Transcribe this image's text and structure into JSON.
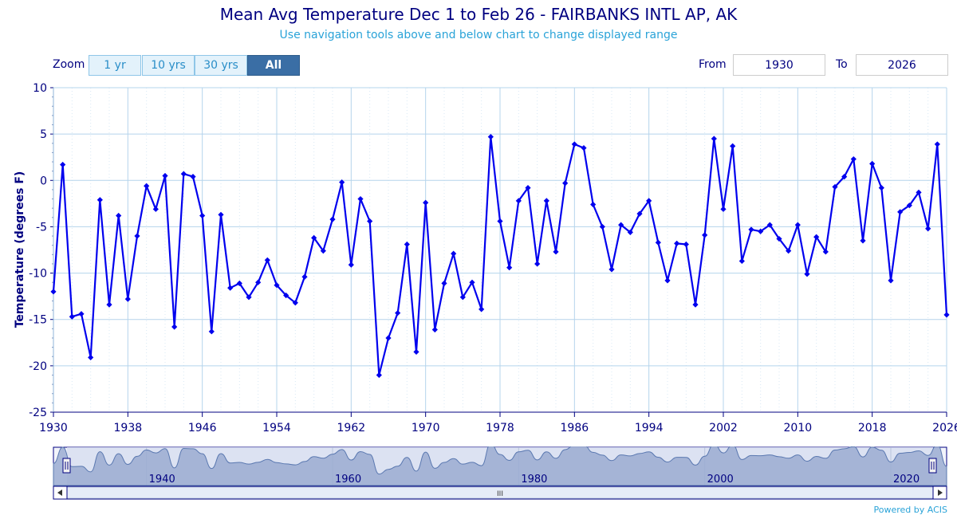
{
  "header": {
    "title": "Mean Avg Temperature Dec 1 to Feb 26 - FAIRBANKS INTL AP, AK",
    "subtitle": "Use navigation tools above and below chart to change displayed range"
  },
  "zoom": {
    "label": "Zoom",
    "buttons": [
      "1 yr",
      "10 yrs",
      "30 yrs",
      "All"
    ],
    "active": "All"
  },
  "range": {
    "from_label": "From",
    "from_value": "1930",
    "to_label": "To",
    "to_value": "2026"
  },
  "navigator": {
    "scroll_grip": "III",
    "handle_grip": "II"
  },
  "footer": {
    "credit": "Powered by ACIS"
  },
  "colors": {
    "title": "#000080",
    "subtitle": "#2aa3d8",
    "series": "#0000ee",
    "grid": "#b5d4ec",
    "axis": "#000080",
    "navigator_fill": "#9bacd1",
    "navigator_line": "#5a78b0"
  },
  "chart_data": {
    "type": "line",
    "title": "Mean Avg Temperature Dec 1 to Feb 26 - FAIRBANKS INTL AP, AK",
    "xlabel": "",
    "ylabel": "Temperature (degrees F)",
    "xlim": [
      1930,
      2026
    ],
    "ylim": [
      -25,
      10
    ],
    "x_ticks": [
      1930,
      1938,
      1946,
      1954,
      1962,
      1970,
      1978,
      1986,
      1994,
      2002,
      2010,
      2018,
      2026
    ],
    "y_ticks": [
      10,
      5,
      0,
      -5,
      -10,
      -15,
      -20,
      -25
    ],
    "navigator_ticks": [
      1940,
      1960,
      1980,
      2000,
      2020
    ],
    "grid": true,
    "legend": "none",
    "series": [
      {
        "name": "Mean Avg Temperature",
        "x": [
          1930,
          1931,
          1932,
          1933,
          1934,
          1935,
          1936,
          1937,
          1938,
          1939,
          1940,
          1941,
          1942,
          1943,
          1944,
          1945,
          1946,
          1947,
          1948,
          1949,
          1950,
          1951,
          1952,
          1953,
          1954,
          1955,
          1956,
          1957,
          1958,
          1959,
          1960,
          1961,
          1962,
          1963,
          1964,
          1965,
          1966,
          1967,
          1968,
          1969,
          1970,
          1971,
          1972,
          1973,
          1974,
          1975,
          1976,
          1977,
          1978,
          1979,
          1980,
          1981,
          1982,
          1983,
          1984,
          1985,
          1986,
          1987,
          1988,
          1989,
          1990,
          1991,
          1992,
          1993,
          1994,
          1995,
          1996,
          1997,
          1998,
          1999,
          2000,
          2001,
          2002,
          2003,
          2004,
          2005,
          2006,
          2007,
          2008,
          2009,
          2010,
          2011,
          2012,
          2013,
          2014,
          2015,
          2016,
          2017,
          2018,
          2019,
          2020,
          2021,
          2022,
          2023,
          2024,
          2025,
          2026
        ],
        "values": [
          -12.0,
          1.7,
          -14.7,
          -14.4,
          -19.1,
          -2.1,
          -13.4,
          -3.8,
          -12.8,
          -6.0,
          -0.6,
          -3.1,
          0.5,
          -15.8,
          0.7,
          0.4,
          -3.8,
          -16.3,
          -3.7,
          -11.6,
          -11.1,
          -12.6,
          -11.0,
          -8.6,
          -11.3,
          -12.4,
          -13.2,
          -10.4,
          -6.2,
          -7.6,
          -4.2,
          -0.2,
          -9.1,
          -2.0,
          -4.4,
          -21.0,
          -17.0,
          -14.3,
          -6.9,
          -18.5,
          -2.4,
          -16.1,
          -11.1,
          -7.9,
          -12.6,
          -11.0,
          -13.9,
          4.7,
          -4.4,
          -9.4,
          -2.2,
          -0.8,
          -9.0,
          -2.2,
          -7.7,
          -0.3,
          3.9,
          3.5,
          -2.6,
          -5.0,
          -9.6,
          -4.8,
          -5.6,
          -3.6,
          -2.2,
          -6.7,
          -10.8,
          -6.8,
          -6.9,
          -13.4,
          -5.9,
          4.5,
          -3.1,
          3.7,
          -8.7,
          -5.3,
          -5.5,
          -4.8,
          -6.3,
          -7.6,
          -4.8,
          -10.1,
          -6.1,
          -7.7,
          -0.7,
          0.4,
          2.3,
          -6.5,
          1.8,
          -0.8,
          -10.8,
          -3.4,
          -2.7,
          -1.3,
          -5.2,
          3.9,
          -14.5
        ]
      }
    ]
  }
}
